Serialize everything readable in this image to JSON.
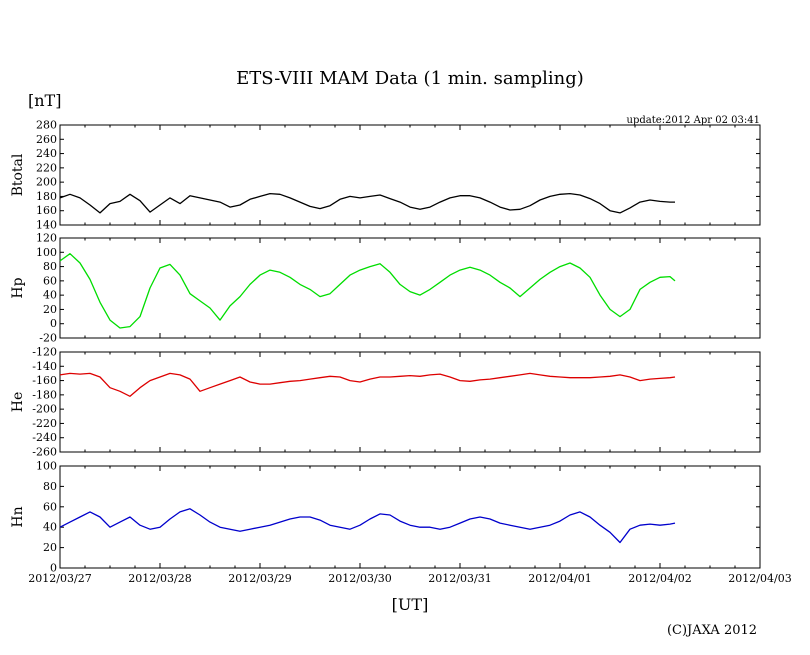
{
  "chart_data": {
    "type": "line",
    "title": "ETS-VIII MAM Data (1 min. sampling)",
    "unit_label": "[nT]",
    "update_text": "update:2012 Apr 02 03:41",
    "xlabel": "[UT]",
    "copyright": "(C)JAXA 2012",
    "x_ticks": [
      "2012/03/27",
      "2012/03/28",
      "2012/03/29",
      "2012/03/30",
      "2012/03/31",
      "2012/04/01",
      "2012/04/02",
      "2012/04/03"
    ],
    "xlim_days": [
      0,
      7
    ],
    "panels": [
      {
        "name": "Btotal",
        "ylabel": "Btotal",
        "ylim": [
          140,
          280
        ],
        "ystep": 20,
        "color": "#000000",
        "series": {
          "x": [
            0,
            0.1,
            0.2,
            0.3,
            0.4,
            0.5,
            0.6,
            0.7,
            0.8,
            0.9,
            1,
            1.1,
            1.2,
            1.3,
            1.4,
            1.5,
            1.6,
            1.7,
            1.8,
            1.9,
            2,
            2.1,
            2.2,
            2.3,
            2.4,
            2.5,
            2.6,
            2.7,
            2.8,
            2.9,
            3,
            3.1,
            3.2,
            3.3,
            3.4,
            3.5,
            3.6,
            3.7,
            3.8,
            3.9,
            4,
            4.1,
            4.2,
            4.3,
            4.4,
            4.5,
            4.6,
            4.7,
            4.8,
            4.9,
            5,
            5.1,
            5.2,
            5.3,
            5.4,
            5.5,
            5.6,
            5.7,
            5.8,
            5.9,
            6,
            6.1,
            6.15
          ],
          "values": [
            178,
            183,
            178,
            168,
            157,
            170,
            173,
            183,
            174,
            158,
            168,
            178,
            170,
            181,
            178,
            175,
            172,
            165,
            168,
            176,
            180,
            184,
            183,
            178,
            172,
            166,
            163,
            167,
            176,
            180,
            178,
            180,
            182,
            177,
            172,
            165,
            162,
            165,
            172,
            178,
            181,
            181,
            178,
            172,
            165,
            161,
            162,
            167,
            175,
            180,
            183,
            184,
            182,
            177,
            170,
            160,
            157,
            164,
            172,
            175,
            173,
            172,
            172
          ]
        }
      },
      {
        "name": "Hp",
        "ylabel": "Hp",
        "ylim": [
          -20,
          120
        ],
        "ystep": 20,
        "color": "#00dd00",
        "series": {
          "x": [
            0,
            0.1,
            0.2,
            0.3,
            0.4,
            0.5,
            0.6,
            0.7,
            0.8,
            0.9,
            1,
            1.1,
            1.2,
            1.3,
            1.4,
            1.5,
            1.6,
            1.7,
            1.8,
            1.9,
            2,
            2.1,
            2.2,
            2.3,
            2.4,
            2.5,
            2.6,
            2.7,
            2.8,
            2.9,
            3,
            3.1,
            3.2,
            3.3,
            3.4,
            3.5,
            3.6,
            3.7,
            3.8,
            3.9,
            4,
            4.1,
            4.2,
            4.3,
            4.4,
            4.5,
            4.6,
            4.7,
            4.8,
            4.9,
            5,
            5.1,
            5.2,
            5.3,
            5.4,
            5.5,
            5.6,
            5.7,
            5.8,
            5.9,
            6,
            6.1,
            6.15
          ],
          "values": [
            88,
            98,
            85,
            62,
            30,
            5,
            -6,
            -4,
            10,
            50,
            78,
            83,
            68,
            42,
            32,
            22,
            5,
            25,
            38,
            55,
            68,
            75,
            72,
            65,
            55,
            48,
            38,
            42,
            55,
            68,
            75,
            80,
            84,
            72,
            55,
            45,
            40,
            48,
            58,
            68,
            75,
            79,
            75,
            68,
            58,
            50,
            38,
            50,
            62,
            72,
            80,
            85,
            78,
            65,
            40,
            20,
            10,
            20,
            48,
            58,
            65,
            66,
            60
          ]
        }
      },
      {
        "name": "He",
        "ylabel": "He",
        "ylim": [
          -260,
          -120
        ],
        "ystep": 20,
        "color": "#dd0000",
        "series": {
          "x": [
            0,
            0.1,
            0.2,
            0.3,
            0.4,
            0.5,
            0.6,
            0.7,
            0.8,
            0.9,
            1,
            1.1,
            1.2,
            1.3,
            1.4,
            1.5,
            1.6,
            1.7,
            1.8,
            1.9,
            2,
            2.1,
            2.2,
            2.3,
            2.4,
            2.5,
            2.6,
            2.7,
            2.8,
            2.9,
            3,
            3.1,
            3.2,
            3.3,
            3.4,
            3.5,
            3.6,
            3.7,
            3.8,
            3.9,
            4,
            4.1,
            4.2,
            4.3,
            4.4,
            4.5,
            4.6,
            4.7,
            4.8,
            4.9,
            5,
            5.1,
            5.2,
            5.3,
            5.4,
            5.5,
            5.6,
            5.7,
            5.8,
            5.9,
            6,
            6.1,
            6.15
          ],
          "values": [
            -152,
            -150,
            -151,
            -150,
            -155,
            -170,
            -175,
            -182,
            -170,
            -160,
            -155,
            -150,
            -152,
            -158,
            -175,
            -170,
            -165,
            -160,
            -155,
            -162,
            -165,
            -165,
            -163,
            -161,
            -160,
            -158,
            -156,
            -154,
            -155,
            -160,
            -162,
            -158,
            -155,
            -155,
            -154,
            -153,
            -154,
            -152,
            -151,
            -155,
            -160,
            -161,
            -159,
            -158,
            -156,
            -154,
            -152,
            -150,
            -152,
            -154,
            -155,
            -156,
            -156,
            -156,
            -155,
            -154,
            -152,
            -155,
            -160,
            -158,
            -157,
            -156,
            -155
          ]
        }
      },
      {
        "name": "Hn",
        "ylabel": "Hn",
        "ylim": [
          0,
          100
        ],
        "ystep": 20,
        "color": "#0000cc",
        "series": {
          "x": [
            0,
            0.1,
            0.2,
            0.3,
            0.4,
            0.5,
            0.6,
            0.7,
            0.8,
            0.9,
            1,
            1.1,
            1.2,
            1.3,
            1.4,
            1.5,
            1.6,
            1.7,
            1.8,
            1.9,
            2,
            2.1,
            2.2,
            2.3,
            2.4,
            2.5,
            2.6,
            2.7,
            2.8,
            2.9,
            3,
            3.1,
            3.2,
            3.3,
            3.4,
            3.5,
            3.6,
            3.7,
            3.8,
            3.9,
            4,
            4.1,
            4.2,
            4.3,
            4.4,
            4.5,
            4.6,
            4.7,
            4.8,
            4.9,
            5,
            5.1,
            5.2,
            5.3,
            5.4,
            5.5,
            5.6,
            5.7,
            5.8,
            5.9,
            6,
            6.1,
            6.15
          ],
          "values": [
            40,
            45,
            50,
            55,
            50,
            40,
            45,
            50,
            42,
            38,
            40,
            48,
            55,
            58,
            52,
            45,
            40,
            38,
            36,
            38,
            40,
            42,
            45,
            48,
            50,
            50,
            47,
            42,
            40,
            38,
            42,
            48,
            53,
            52,
            46,
            42,
            40,
            40,
            38,
            40,
            44,
            48,
            50,
            48,
            44,
            42,
            40,
            38,
            40,
            42,
            46,
            52,
            55,
            50,
            42,
            35,
            25,
            38,
            42,
            43,
            42,
            43,
            44
          ]
        }
      }
    ]
  }
}
